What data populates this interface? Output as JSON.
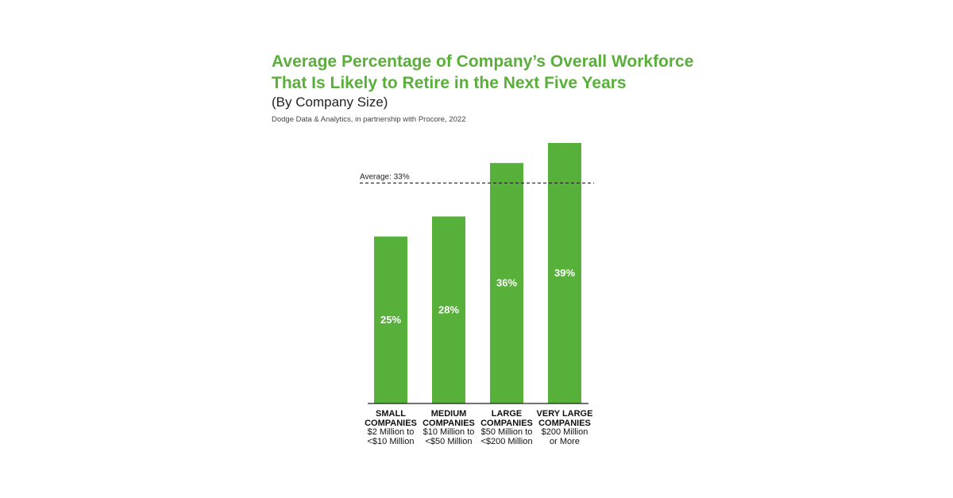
{
  "chart_data": {
    "type": "bar",
    "title": [
      "Average Percentage of Company’s Overall Workforce",
      "That Is Likely to Retire in the Next Five Years"
    ],
    "subtitle": "(By Company Size)",
    "source": "Dodge Data & Analytics, in partnership with Procore, 2022",
    "categories": [
      "SMALL COMPANIES",
      "MEDIUM COMPANIES",
      "LARGE COMPANIES",
      "VERY LARGE COMPANIES"
    ],
    "category_notes": [
      "$2 Million to <$10 Million",
      "$10 Million to <$50 Million",
      "$50 Million to <$200 Million",
      "$200 Million or More"
    ],
    "values": [
      25,
      28,
      36,
      39
    ],
    "value_labels": [
      "25%",
      "28%",
      "36%",
      "39%"
    ],
    "average": {
      "value": 33,
      "label": "Average: 33%"
    },
    "color": "#57b03a",
    "title_color": "#5aaf3b"
  }
}
